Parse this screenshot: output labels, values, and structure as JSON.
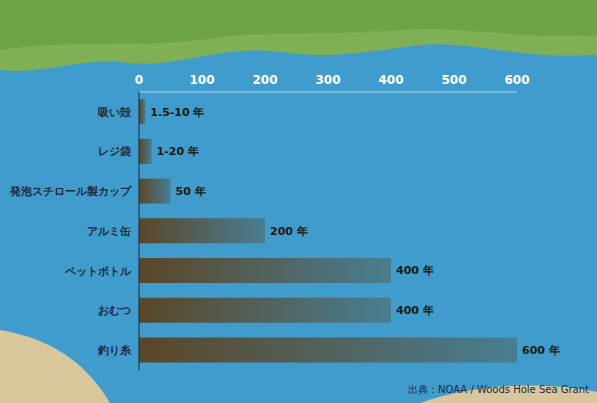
{
  "chart_data": {
    "type": "bar",
    "orientation": "horizontal",
    "categories": [
      "吸い殻",
      "レジ袋",
      "発泡スチロール製カップ",
      "アルミ缶",
      "ペットボトル",
      "おむつ",
      "釣り糸"
    ],
    "values": [
      10,
      20,
      50,
      200,
      400,
      400,
      600
    ],
    "value_labels": [
      "1.5-10 年",
      "1-20 年",
      "50 年",
      "200 年",
      "400 年",
      "400 年",
      "600 年"
    ],
    "data_labels": true,
    "color": "#5a4627",
    "xlim": [
      0,
      600
    ],
    "xticks": [
      0,
      100,
      200,
      300,
      400,
      500,
      600
    ],
    "grid": false,
    "source": "出典：NOAA / Woods Hole Sea Grant"
  }
}
